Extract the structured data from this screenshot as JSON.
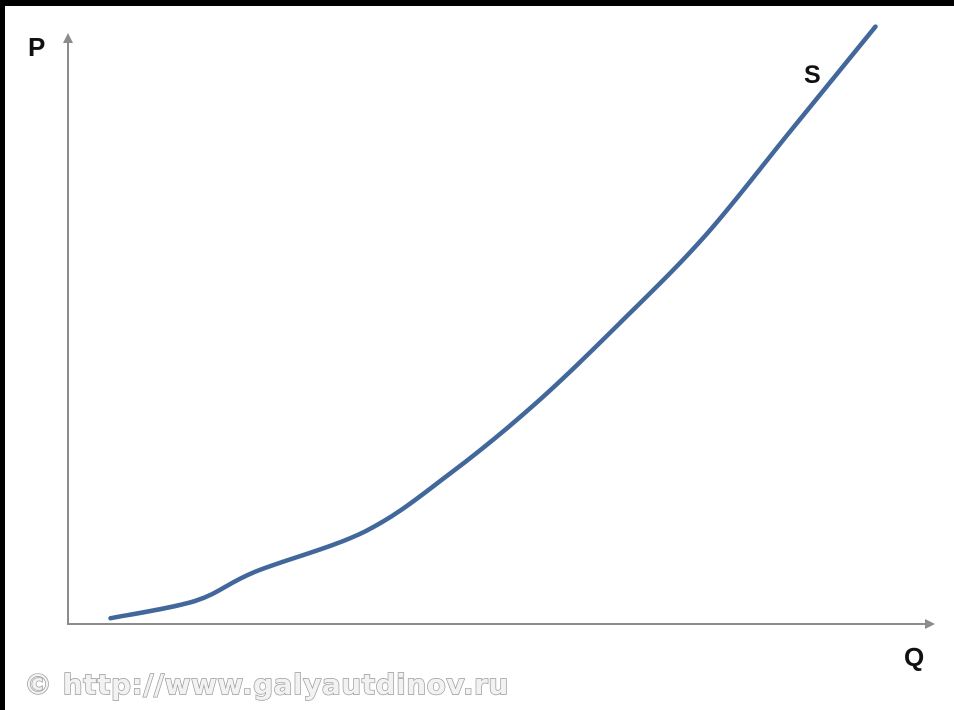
{
  "chart_data": {
    "type": "line",
    "title": "",
    "xlabel": "Q",
    "ylabel": "P",
    "grid": false,
    "legend": "none",
    "xlim": [
      0,
      100
    ],
    "ylim": [
      0,
      100
    ],
    "series": [
      {
        "name": "S",
        "color": "#41679b",
        "x": [
          5,
          15,
          22,
          35,
          45,
          55,
          65,
          75,
          85,
          95
        ],
        "y": [
          1,
          4,
          9,
          16,
          26,
          38,
          52,
          67,
          85,
          103
        ]
      }
    ]
  },
  "watermark": {
    "text": "© http://www.galyautdinov.ru"
  },
  "colors": {
    "axis": "#8c8c8c",
    "curve": "#41679b",
    "background": "#ffffff",
    "border": "#000000"
  }
}
